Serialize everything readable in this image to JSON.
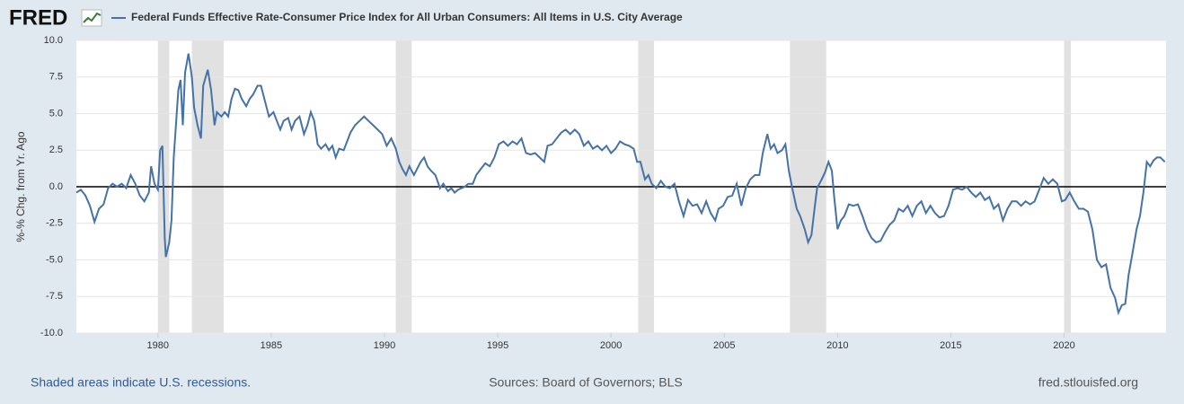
{
  "logo": "FRED",
  "footer": {
    "note": "Shaded areas indicate U.S. recessions.",
    "sources": "Sources: Board of Governors; BLS",
    "site": "fred.stlouisfed.org"
  },
  "chart_data": {
    "type": "line",
    "y_label": "%-% Chg. from Yr. Ago",
    "xlim": [
      1976.4,
      2024.5
    ],
    "xticks": [
      1980,
      1985,
      1990,
      1995,
      2000,
      2005,
      2010,
      2015,
      2020
    ],
    "ylim": [
      -10,
      10
    ],
    "yticks": [
      {
        "value": -10,
        "label": "-10.0"
      },
      -7.5,
      {
        "value": -5,
        "label": "-5.0"
      },
      -2.5,
      {
        "value": 0,
        "label": "0.0"
      },
      2.5,
      {
        "value": 5,
        "label": "5.0"
      },
      7.5,
      {
        "value": 10,
        "label": "10.0"
      }
    ],
    "grid": true,
    "baseline": 0,
    "legend": "top",
    "recession_color": "#e1e1e1",
    "recessions": [
      [
        1980.0,
        1980.5
      ],
      [
        1981.5,
        1982.9
      ],
      [
        1990.5,
        1991.2
      ],
      [
        2001.2,
        2001.9
      ],
      [
        2007.9,
        2009.5
      ],
      [
        2020.0,
        2020.3
      ]
    ],
    "x": [
      1976.4,
      1976.6,
      1976.8,
      1977.0,
      1977.2,
      1977.4,
      1977.6,
      1977.8,
      1978.0,
      1978.2,
      1978.4,
      1978.6,
      1978.8,
      1979.0,
      1979.2,
      1979.4,
      1979.6,
      1979.7,
      1979.85,
      1980.0,
      1980.1,
      1980.2,
      1980.3,
      1980.35,
      1980.5,
      1980.6,
      1980.7,
      1980.9,
      1981.0,
      1981.1,
      1981.2,
      1981.35,
      1981.5,
      1981.6,
      1981.75,
      1981.9,
      1982.0,
      1982.2,
      1982.35,
      1982.5,
      1982.6,
      1982.8,
      1982.95,
      1983.1,
      1983.25,
      1983.4,
      1983.55,
      1983.7,
      1983.9,
      1984.05,
      1984.2,
      1984.4,
      1984.55,
      1984.7,
      1984.9,
      1985.1,
      1985.25,
      1985.4,
      1985.55,
      1985.75,
      1985.9,
      1986.05,
      1986.25,
      1986.45,
      1986.6,
      1986.75,
      1986.9,
      1987.05,
      1987.2,
      1987.4,
      1987.55,
      1987.7,
      1987.85,
      1988.0,
      1988.2,
      1988.35,
      1988.5,
      1988.7,
      1988.9,
      1989.1,
      1989.3,
      1989.5,
      1989.7,
      1989.9,
      1990.1,
      1990.3,
      1990.5,
      1990.65,
      1990.8,
      1990.95,
      1991.1,
      1991.3,
      1991.4,
      1991.6,
      1991.75,
      1991.9,
      1992.05,
      1992.25,
      1992.45,
      1992.6,
      1992.8,
      1992.95,
      1993.1,
      1993.25,
      1993.4,
      1993.55,
      1993.7,
      1993.9,
      1994.05,
      1994.25,
      1994.45,
      1994.65,
      1994.85,
      1995.05,
      1995.25,
      1995.45,
      1995.65,
      1995.85,
      1996.05,
      1996.25,
      1996.45,
      1996.65,
      1996.85,
      1997.05,
      1997.2,
      1997.4,
      1997.6,
      1997.8,
      1998.0,
      1998.2,
      1998.4,
      1998.6,
      1998.8,
      1999.0,
      1999.2,
      1999.4,
      1999.6,
      1999.8,
      2000.0,
      2000.2,
      2000.4,
      2000.6,
      2000.8,
      2001.0,
      2001.15,
      2001.3,
      2001.5,
      2001.65,
      2001.8,
      2002.0,
      2002.2,
      2002.4,
      2002.6,
      2002.8,
      2003.0,
      2003.2,
      2003.4,
      2003.6,
      2003.8,
      2004.0,
      2004.2,
      2004.4,
      2004.6,
      2004.75,
      2004.95,
      2005.15,
      2005.35,
      2005.55,
      2005.75,
      2005.95,
      2006.15,
      2006.35,
      2006.55,
      2006.7,
      2006.9,
      2007.05,
      2007.2,
      2007.35,
      2007.55,
      2007.7,
      2007.85,
      2008.0,
      2008.2,
      2008.35,
      2008.55,
      2008.7,
      2008.85,
      2009.0,
      2009.1,
      2009.3,
      2009.45,
      2009.6,
      2009.75,
      2009.85,
      2010.0,
      2010.15,
      2010.3,
      2010.5,
      2010.7,
      2010.9,
      2011.1,
      2011.3,
      2011.5,
      2011.7,
      2011.9,
      2012.1,
      2012.3,
      2012.5,
      2012.7,
      2012.9,
      2013.1,
      2013.3,
      2013.5,
      2013.7,
      2013.9,
      2014.1,
      2014.3,
      2014.5,
      2014.7,
      2014.9,
      2015.1,
      2015.3,
      2015.5,
      2015.7,
      2015.9,
      2016.1,
      2016.3,
      2016.5,
      2016.7,
      2016.9,
      2017.1,
      2017.3,
      2017.5,
      2017.7,
      2017.9,
      2018.1,
      2018.3,
      2018.5,
      2018.7,
      2018.9,
      2019.1,
      2019.3,
      2019.5,
      2019.7,
      2019.9,
      2020.05,
      2020.25,
      2020.45,
      2020.65,
      2020.85,
      2021.05,
      2021.25,
      2021.45,
      2021.65,
      2021.85,
      2022.05,
      2022.25,
      2022.4,
      2022.55,
      2022.7,
      2022.85,
      2023.0,
      2023.2,
      2023.35,
      2023.5,
      2023.65,
      2023.8,
      2023.95,
      2024.1,
      2024.25,
      2024.45
    ],
    "series": [
      {
        "name": "Federal Funds Effective Rate-Consumer Price Index for All Urban Consumers: All Items in U.S. City Average",
        "color": "#4572a7",
        "values": [
          -0.4,
          -0.2,
          -0.6,
          -1.3,
          -2.4,
          -1.5,
          -1.2,
          -0.1,
          0.2,
          0,
          0.2,
          -0.1,
          0.8,
          0.2,
          -0.6,
          -1.0,
          -0.4,
          1.4,
          0.2,
          -0.2,
          2.5,
          2.8,
          -3.5,
          -4.8,
          -3.8,
          -2.3,
          2.0,
          6.6,
          7.3,
          4.2,
          7.8,
          9.1,
          7.5,
          5.4,
          4.2,
          3.3,
          6.9,
          8.0,
          6.6,
          4.2,
          5.1,
          4.8,
          5.1,
          4.8,
          6.0,
          6.7,
          6.6,
          6.0,
          5.5,
          6.0,
          6.3,
          6.9,
          6.9,
          6.0,
          4.8,
          5.1,
          4.5,
          3.9,
          4.5,
          4.7,
          3.9,
          4.5,
          4.8,
          3.6,
          4.2,
          5.1,
          4.5,
          2.9,
          2.6,
          2.9,
          2.5,
          2.8,
          2.0,
          2.6,
          2.5,
          3.1,
          3.7,
          4.2,
          4.5,
          4.8,
          4.5,
          4.2,
          3.9,
          3.6,
          2.8,
          3.3,
          2.6,
          1.7,
          1.2,
          0.8,
          1.4,
          0.8,
          1.1,
          1.7,
          2.0,
          1.4,
          1.1,
          0.8,
          -0.1,
          0.2,
          -0.3,
          -0.1,
          -0.4,
          -0.2,
          -0.1,
          0,
          0.2,
          0.2,
          0.8,
          1.2,
          1.6,
          1.4,
          2.0,
          2.9,
          3.1,
          2.8,
          3.1,
          2.9,
          3.3,
          2.3,
          2.2,
          2.3,
          2.0,
          1.7,
          2.8,
          2.9,
          3.3,
          3.7,
          3.9,
          3.6,
          3.9,
          3.6,
          2.8,
          3.1,
          2.6,
          2.8,
          2.5,
          2.8,
          2.3,
          2.6,
          3.1,
          2.9,
          2.8,
          2.6,
          1.7,
          1.7,
          0.5,
          0.8,
          0.2,
          -0.1,
          0.4,
          0,
          -0.1,
          0.2,
          -1.0,
          -2.0,
          -0.9,
          -1.3,
          -1.2,
          -1.8,
          -1.0,
          -1.8,
          -2.3,
          -1.5,
          -1.3,
          -0.7,
          -0.6,
          0.2,
          -1.3,
          -0.1,
          0.5,
          0.8,
          0.8,
          2.3,
          3.6,
          2.6,
          2.9,
          2.3,
          2.5,
          2.9,
          1.1,
          -0.1,
          -1.5,
          -2.0,
          -2.9,
          -3.8,
          -3.3,
          -1.3,
          -0.1,
          0.5,
          1.0,
          1.7,
          1.1,
          -0.7,
          -2.9,
          -2.3,
          -2.0,
          -1.2,
          -1.3,
          -1.2,
          -2.0,
          -2.9,
          -3.5,
          -3.8,
          -3.7,
          -3.1,
          -2.6,
          -2.3,
          -1.5,
          -1.7,
          -1.3,
          -2.0,
          -1.3,
          -1.0,
          -1.8,
          -1.3,
          -1.8,
          -2.1,
          -2.0,
          -1.3,
          -0.2,
          -0.1,
          -0.2,
          0,
          -0.4,
          -0.7,
          -0.4,
          -0.9,
          -0.7,
          -1.5,
          -1.2,
          -2.3,
          -1.5,
          -1.0,
          -1.0,
          -1.3,
          -1.0,
          -1.2,
          -1.0,
          -0.2,
          0.6,
          0.2,
          0.5,
          0.2,
          -1.0,
          -0.9,
          -0.4,
          -1.0,
          -1.5,
          -1.5,
          -1.7,
          -2.9,
          -5.0,
          -5.5,
          -5.3,
          -6.9,
          -7.6,
          -8.6,
          -8.1,
          -8.0,
          -6.0,
          -4.7,
          -2.9,
          -2.0,
          -0.4,
          1.7,
          1.4,
          1.8,
          2.0,
          2.0,
          1.7
        ]
      }
    ]
  }
}
